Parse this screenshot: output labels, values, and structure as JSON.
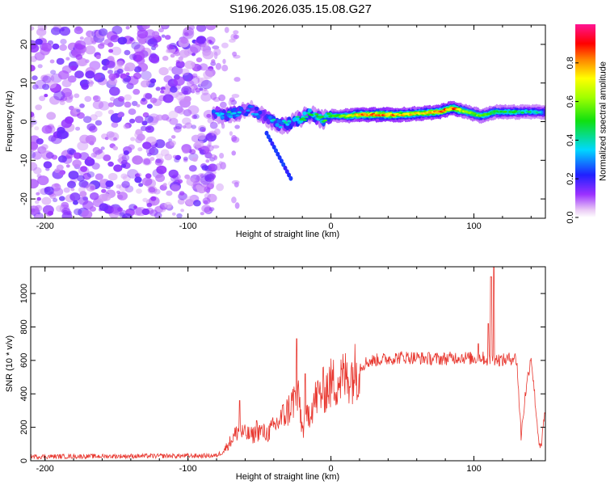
{
  "title": "S196.2026.035.15.08.G27",
  "colors": {
    "snr_line": "#e8372f",
    "noise_purple": "#8a2be2",
    "axes": "#000000"
  },
  "chart_data": [
    {
      "type": "heatmap",
      "xlabel": "Height of straight line (km)",
      "ylabel": "Frequency (Hz)",
      "xlim": [
        -210,
        150
      ],
      "ylim": [
        -25,
        25
      ],
      "x_ticks": [
        -200,
        -100,
        0,
        100
      ],
      "x_tick_labels": [
        "-200",
        "-100",
        "0",
        "100"
      ],
      "y_ticks": [
        -20,
        -10,
        0,
        10,
        20
      ],
      "y_tick_labels": [
        "-20",
        "-10",
        "0",
        "10",
        "20"
      ],
      "noise_region_x": [
        -210,
        -82
      ],
      "signal_ridge": [
        {
          "x": -82,
          "freq": 2.5,
          "amp": 0.35
        },
        {
          "x": -75,
          "freq": 1.5,
          "amp": 0.4
        },
        {
          "x": -65,
          "freq": 2.5,
          "amp": 0.35
        },
        {
          "x": -55,
          "freq": 3,
          "amp": 0.3
        },
        {
          "x": -45,
          "freq": 1,
          "amp": 0.35
        },
        {
          "x": -35,
          "freq": -1,
          "amp": 0.4
        },
        {
          "x": -25,
          "freq": 0,
          "amp": 0.45
        },
        {
          "x": -15,
          "freq": 2,
          "amp": 0.45
        },
        {
          "x": -5,
          "freq": 0.5,
          "amp": 0.5
        },
        {
          "x": 0,
          "freq": 1.5,
          "amp": 0.5
        },
        {
          "x": 10,
          "freq": 1.5,
          "amp": 0.6
        },
        {
          "x": 20,
          "freq": 1.8,
          "amp": 0.8
        },
        {
          "x": 35,
          "freq": 1.8,
          "amp": 0.9
        },
        {
          "x": 50,
          "freq": 1.8,
          "amp": 0.75
        },
        {
          "x": 65,
          "freq": 2.2,
          "amp": 0.7
        },
        {
          "x": 75,
          "freq": 2.5,
          "amp": 0.8
        },
        {
          "x": 85,
          "freq": 3.5,
          "amp": 0.85
        },
        {
          "x": 95,
          "freq": 2.5,
          "amp": 0.6
        },
        {
          "x": 105,
          "freq": 1.5,
          "amp": 0.55
        },
        {
          "x": 115,
          "freq": 2.5,
          "amp": 0.5
        },
        {
          "x": 130,
          "freq": 2.5,
          "amp": 0.45
        },
        {
          "x": 150,
          "freq": 2.5,
          "amp": 0.4
        }
      ],
      "colorbar": {
        "label": "Normalized spectral amplitude",
        "range": [
          0,
          1
        ],
        "ticks": [
          0.0,
          0.2,
          0.4,
          0.6,
          0.8
        ],
        "tick_labels": [
          "0.0",
          "0.2",
          "0.4",
          "0.6",
          "0.8"
        ],
        "colormap": "rainbow (white-violet-blue-cyan-green-yellow-red-magenta)"
      }
    },
    {
      "type": "line",
      "xlabel": "Height of straight line (km)",
      "ylabel": "SNR (10 * v/v)",
      "xlim": [
        -210,
        150
      ],
      "ylim": [
        0,
        1160
      ],
      "x_ticks": [
        -200,
        -100,
        0,
        100
      ],
      "x_tick_labels": [
        "-200",
        "-100",
        "0",
        "100"
      ],
      "y_ticks": [
        0,
        200,
        400,
        600,
        800,
        1000
      ],
      "y_tick_labels": [
        "0",
        "200",
        "400",
        "600",
        "800",
        "1000"
      ],
      "series": [
        {
          "name": "SNR",
          "envelope_x": [
            -210,
            -80,
            -75,
            -70,
            -65,
            -60,
            -55,
            -50,
            -45,
            -40,
            -35,
            -30,
            -25,
            -22,
            -20,
            -15,
            -10,
            -5,
            0,
            5,
            10,
            15,
            20,
            25,
            30,
            40,
            50,
            60,
            70,
            80,
            90,
            100,
            105,
            110,
            115,
            120,
            125,
            128,
            130,
            133,
            136,
            140,
            145,
            147,
            149,
            150
          ],
          "envelope_y": [
            25,
            30,
            60,
            120,
            180,
            160,
            150,
            180,
            160,
            200,
            250,
            300,
            380,
            350,
            180,
            300,
            380,
            420,
            460,
            480,
            500,
            520,
            560,
            590,
            600,
            610,
            620,
            615,
            610,
            610,
            620,
            610,
            620,
            600,
            610,
            600,
            610,
            620,
            600,
            150,
            400,
            630,
            150,
            60,
            250,
            280
          ],
          "spikes": [
            {
              "x": -64,
              "y": 360
            },
            {
              "x": -52,
              "y": 240
            },
            {
              "x": -24,
              "y": 730
            },
            {
              "x": -18,
              "y": 520
            },
            {
              "x": 112,
              "y": 1100
            },
            {
              "x": 114,
              "y": 1160
            },
            {
              "x": 110,
              "y": 820
            },
            {
              "x": 103,
              "y": 700
            }
          ]
        }
      ]
    }
  ]
}
